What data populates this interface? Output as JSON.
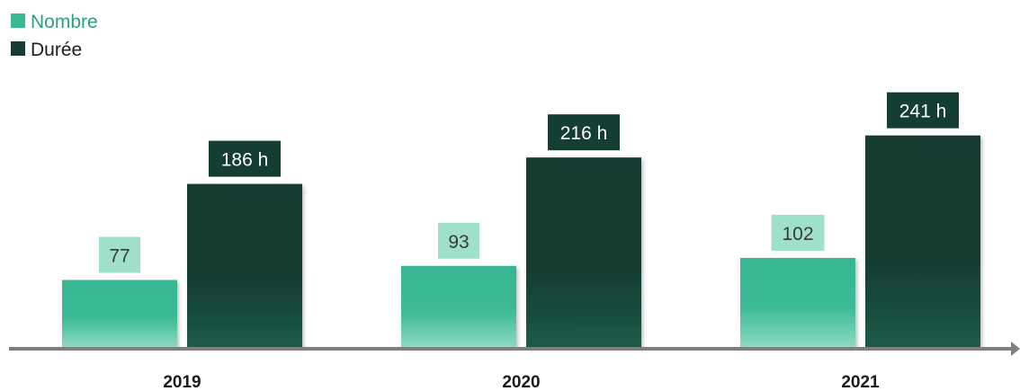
{
  "chart_data": {
    "type": "bar",
    "categories": [
      "2019",
      "2020",
      "2021"
    ],
    "series": [
      {
        "name": "Nombre",
        "values": [
          77,
          93,
          102
        ],
        "labels": [
          "77",
          "93",
          "102"
        ],
        "color": "#39b894"
      },
      {
        "name": "Durée",
        "values": [
          186,
          216,
          241
        ],
        "labels": [
          "186 h",
          "216 h",
          "241 h"
        ],
        "color": "#143d33"
      }
    ],
    "legend_position": "top-left",
    "grid": false,
    "axis_color": "#7f7f7f",
    "label_colors": {
      "Nombre": "#9fe0cc",
      "Durée": "#143d33"
    }
  }
}
